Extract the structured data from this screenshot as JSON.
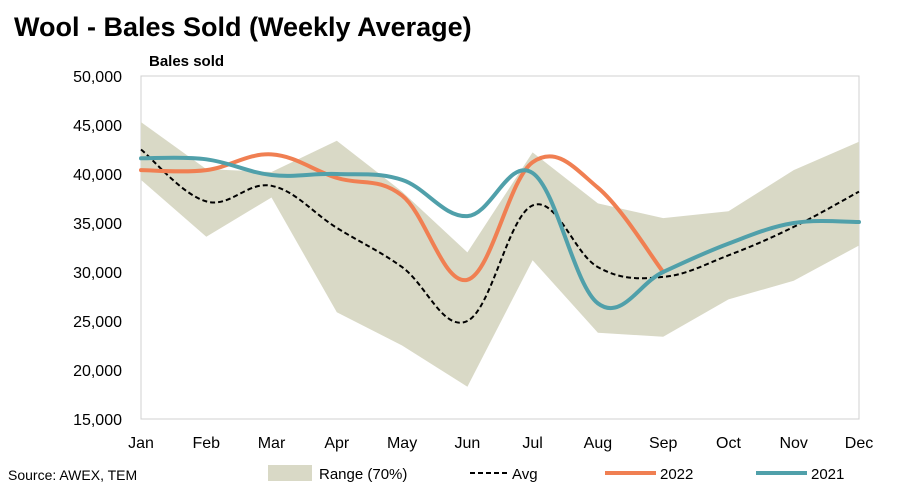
{
  "chart_data": {
    "type": "line",
    "title": "Wool - Bales Sold (Weekly Average)",
    "ylabel": "Bales sold",
    "xlabel": "",
    "categories": [
      "Jan",
      "Feb",
      "Mar",
      "Apr",
      "May",
      "Jun",
      "Jul",
      "Aug",
      "Sep",
      "Oct",
      "Nov",
      "Dec"
    ],
    "ylim": [
      15000,
      50000
    ],
    "yticks": [
      15000,
      20000,
      25000,
      30000,
      35000,
      40000,
      45000,
      50000
    ],
    "ytick_labels": [
      "15,000",
      "20,000",
      "25,000",
      "30,000",
      "35,000",
      "40,000",
      "45,000",
      "50,000"
    ],
    "grid": false,
    "legend_position": "bottom",
    "range": {
      "name": "Range (70%)",
      "color": "#d9d9c6",
      "upper": [
        45300,
        40500,
        40200,
        43400,
        38200,
        32000,
        42200,
        37000,
        35500,
        36200,
        40400,
        43300
      ],
      "lower": [
        39400,
        33600,
        37600,
        25900,
        22500,
        18300,
        31200,
        23800,
        23400,
        27200,
        29100,
        32700
      ]
    },
    "series": [
      {
        "name": "Avg",
        "color": "#000000",
        "style": "dashed",
        "values": [
          42500,
          37200,
          38800,
          34500,
          30500,
          25000,
          36800,
          30500,
          29500,
          31700,
          34600,
          38200
        ]
      },
      {
        "name": "2022",
        "color": "#f07f52",
        "style": "solid",
        "values": [
          40400,
          40400,
          42000,
          39600,
          37800,
          29200,
          41200,
          38600,
          30000,
          null,
          null,
          null
        ]
      },
      {
        "name": "2021",
        "color": "#50a0aa",
        "style": "solid",
        "values": [
          41600,
          41500,
          39900,
          40000,
          39400,
          35700,
          40100,
          26800,
          30000,
          32900,
          35000,
          35100
        ]
      }
    ]
  },
  "source": "Source: AWEX, TEM"
}
